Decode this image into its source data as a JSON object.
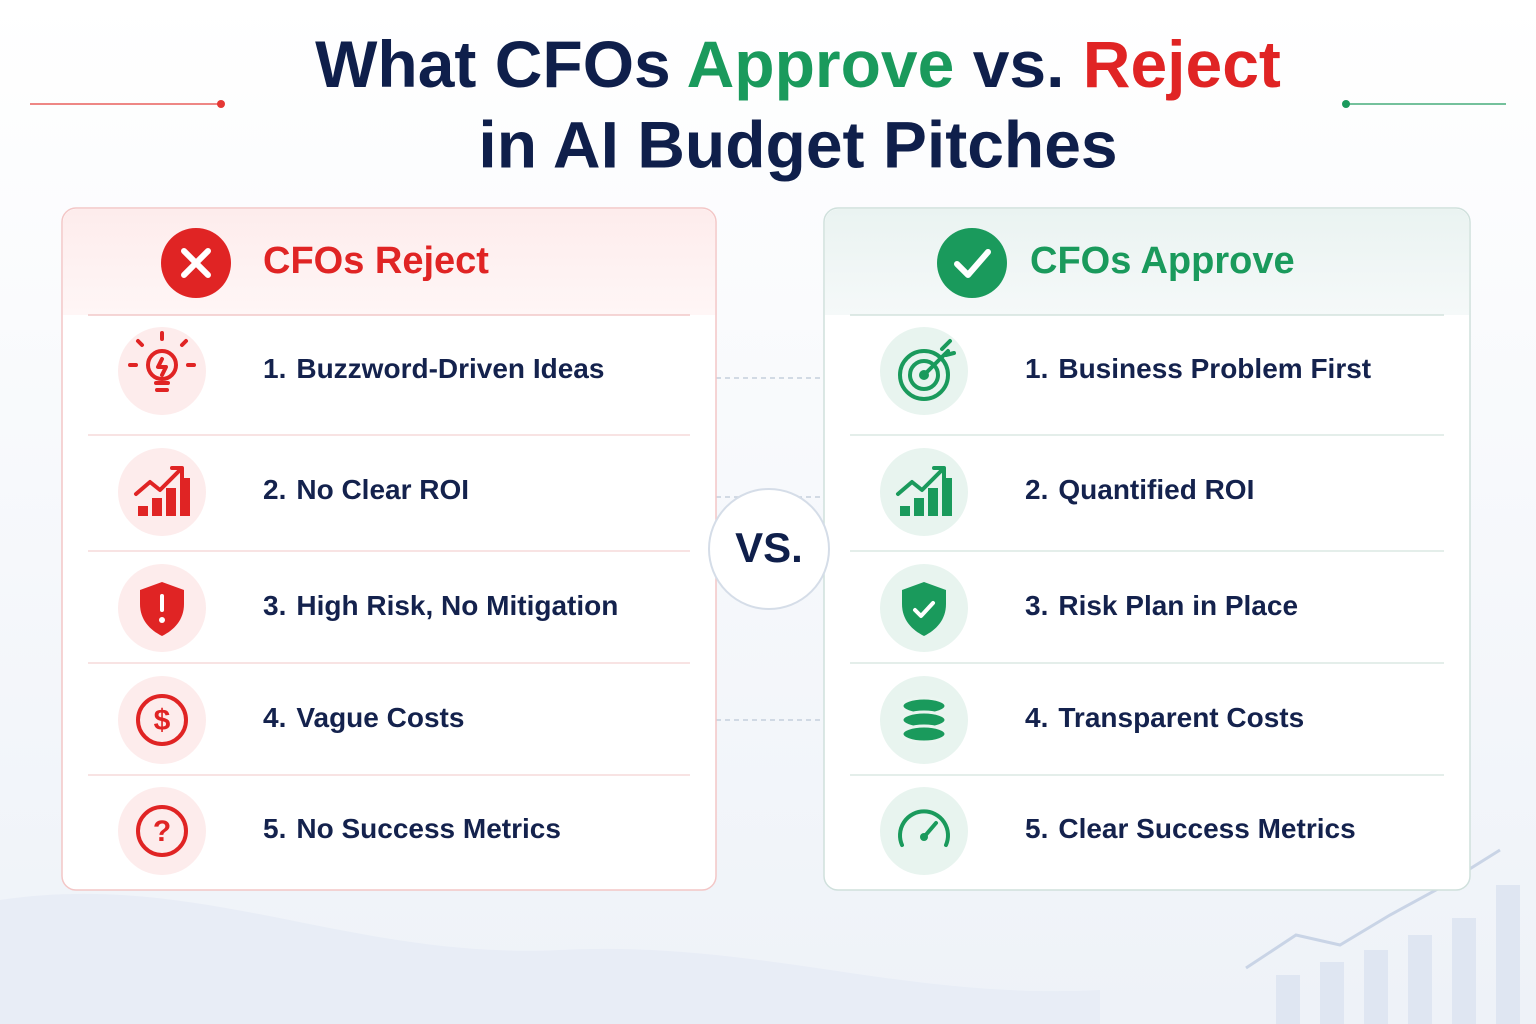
{
  "title": {
    "part1": "What CFOs",
    "approve": "Approve",
    "vs": "vs.",
    "reject": "Reject",
    "line2": "in AI Budget Pitches"
  },
  "reject": {
    "heading": "CFOs Reject",
    "items": [
      {
        "number": "1.",
        "text": "Buzzword-Driven Ideas"
      },
      {
        "number": "2.",
        "text": "No Clear ROI"
      },
      {
        "number": "3.",
        "text": "High Risk, No Mitigation"
      },
      {
        "number": "4.",
        "text": "Vague Costs"
      },
      {
        "number": "5.",
        "text": "No Success Metrics"
      }
    ]
  },
  "approve": {
    "heading": "CFOs Approve",
    "items": [
      {
        "number": "1.",
        "text": "Business Problem First"
      },
      {
        "number": "2.",
        "text": "Quantified ROI"
      },
      {
        "number": "3.",
        "text": "Risk Plan in Place"
      },
      {
        "number": "4.",
        "text": "Transparent Costs"
      },
      {
        "number": "5.",
        "text": "Clear Success Metrics"
      }
    ]
  },
  "vs_badge": "VS."
}
